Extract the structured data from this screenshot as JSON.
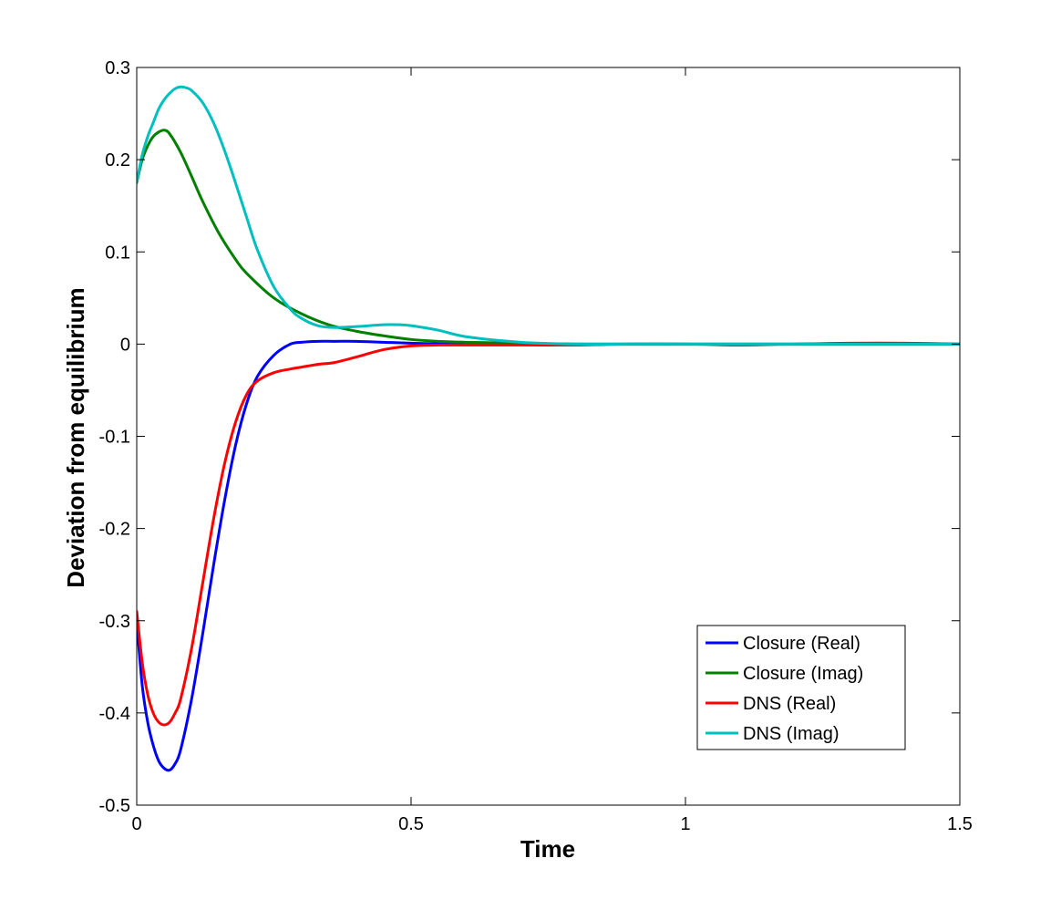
{
  "chart_data": {
    "type": "line",
    "title": "",
    "xlabel": "Time",
    "ylabel": "Deviation from equilibrium",
    "xlim": [
      0,
      1.5
    ],
    "ylim": [
      -0.5,
      0.3
    ],
    "xticks": [
      0,
      0.5,
      1,
      1.5
    ],
    "xtick_labels": [
      "0",
      "0.5",
      "1",
      "1.5"
    ],
    "yticks": [
      -0.5,
      -0.4,
      -0.3,
      -0.2,
      -0.1,
      0,
      0.1,
      0.2,
      0.3
    ],
    "ytick_labels": [
      "-0.5",
      "-0.4",
      "-0.3",
      "-0.2",
      "-0.1",
      "0",
      "0.1",
      "0.2",
      "0.3"
    ],
    "grid": false,
    "legend_position": "bottom-right",
    "series": [
      {
        "name": "Closure (Real)",
        "color": "#0000ff",
        "x": [
          0,
          0.01,
          0.02,
          0.03,
          0.04,
          0.05,
          0.06,
          0.07,
          0.08,
          0.1,
          0.12,
          0.14,
          0.16,
          0.18,
          0.2,
          0.22,
          0.25,
          0.28,
          0.3,
          0.33,
          0.36,
          0.4,
          0.45,
          0.5,
          0.6,
          0.8,
          1.0,
          1.2,
          1.5
        ],
        "y": [
          -0.3,
          -0.37,
          -0.41,
          -0.435,
          -0.452,
          -0.46,
          -0.462,
          -0.455,
          -0.44,
          -0.385,
          -0.315,
          -0.24,
          -0.17,
          -0.11,
          -0.065,
          -0.035,
          -0.012,
          0.0,
          0.002,
          0.003,
          0.003,
          0.003,
          0.002,
          0.001,
          0.0,
          0.0,
          0.0,
          0.0,
          0.0
        ]
      },
      {
        "name": "Closure (Imag)",
        "color": "#008000",
        "x": [
          0,
          0.01,
          0.02,
          0.03,
          0.04,
          0.05,
          0.06,
          0.08,
          0.1,
          0.12,
          0.15,
          0.18,
          0.2,
          0.25,
          0.3,
          0.35,
          0.4,
          0.45,
          0.5,
          0.55,
          0.6,
          0.7,
          0.8,
          1.0,
          1.2,
          1.5
        ],
        "y": [
          0.175,
          0.2,
          0.215,
          0.225,
          0.23,
          0.232,
          0.228,
          0.208,
          0.182,
          0.155,
          0.12,
          0.092,
          0.077,
          0.05,
          0.033,
          0.021,
          0.014,
          0.009,
          0.005,
          0.003,
          0.002,
          0.001,
          0.0,
          0.0,
          0.0,
          0.0
        ]
      },
      {
        "name": "DNS (Real)",
        "color": "#ff0000",
        "x": [
          0,
          0.01,
          0.02,
          0.03,
          0.04,
          0.05,
          0.06,
          0.07,
          0.08,
          0.1,
          0.12,
          0.14,
          0.16,
          0.18,
          0.2,
          0.22,
          0.25,
          0.28,
          0.3,
          0.33,
          0.36,
          0.4,
          0.45,
          0.5,
          0.55,
          0.6,
          0.7,
          0.8,
          0.9,
          1.0,
          1.1,
          1.2,
          1.3,
          1.4,
          1.5
        ],
        "y": [
          -0.29,
          -0.345,
          -0.38,
          -0.4,
          -0.41,
          -0.413,
          -0.41,
          -0.4,
          -0.385,
          -0.33,
          -0.26,
          -0.19,
          -0.13,
          -0.085,
          -0.055,
          -0.04,
          -0.031,
          -0.027,
          -0.025,
          -0.022,
          -0.02,
          -0.014,
          -0.006,
          -0.002,
          -0.001,
          -0.001,
          -0.001,
          -0.001,
          0.0,
          0.0,
          -0.001,
          0.0,
          0.001,
          0.001,
          0.0
        ]
      },
      {
        "name": "DNS (Imag)",
        "color": "#00bfbf",
        "x": [
          0,
          0.01,
          0.02,
          0.03,
          0.04,
          0.05,
          0.06,
          0.07,
          0.08,
          0.09,
          0.1,
          0.12,
          0.14,
          0.16,
          0.18,
          0.2,
          0.22,
          0.25,
          0.28,
          0.3,
          0.33,
          0.36,
          0.4,
          0.45,
          0.48,
          0.5,
          0.55,
          0.6,
          0.7,
          0.8,
          0.9,
          1.0,
          1.2,
          1.5
        ],
        "y": [
          0.175,
          0.205,
          0.225,
          0.24,
          0.255,
          0.265,
          0.272,
          0.277,
          0.279,
          0.278,
          0.275,
          0.262,
          0.24,
          0.21,
          0.175,
          0.138,
          0.102,
          0.062,
          0.038,
          0.028,
          0.02,
          0.018,
          0.019,
          0.021,
          0.021,
          0.02,
          0.015,
          0.008,
          0.002,
          0.0,
          0.0,
          0.0,
          0.0,
          0.0
        ]
      }
    ]
  }
}
